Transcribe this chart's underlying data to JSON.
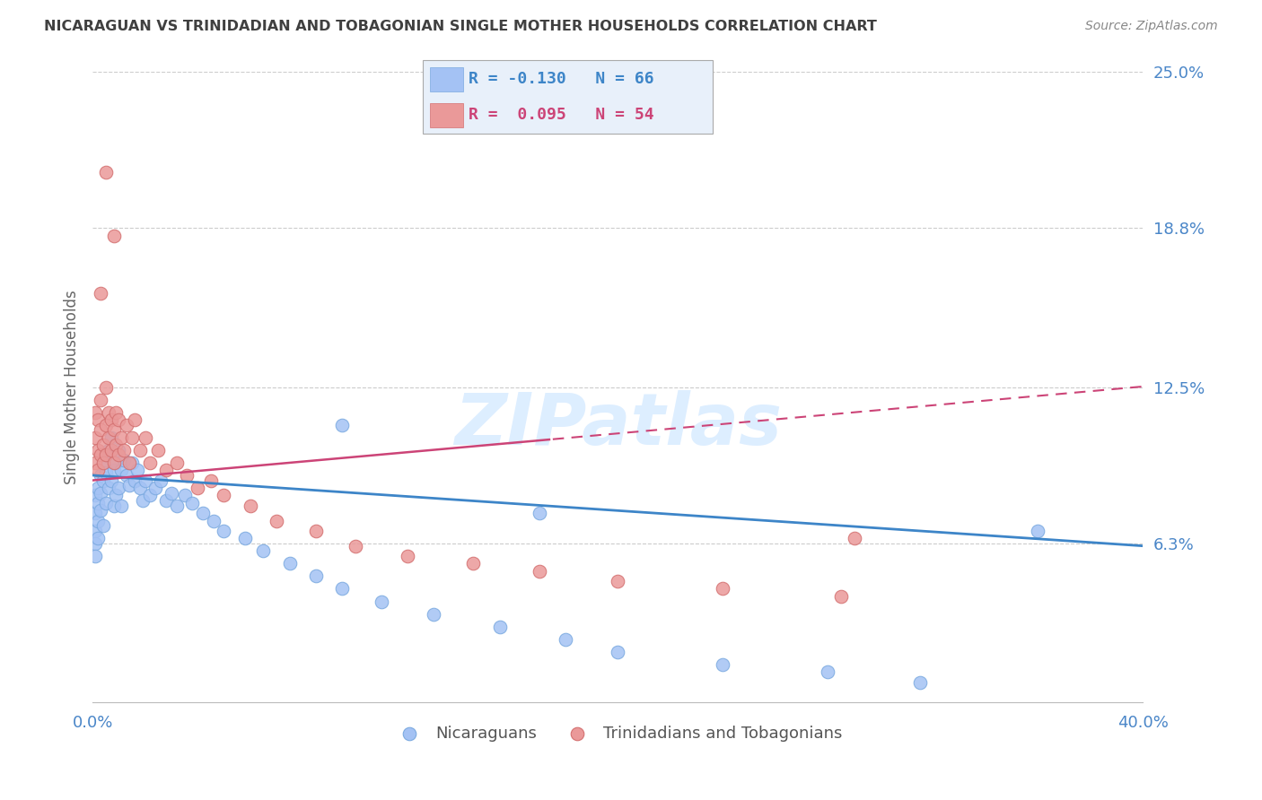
{
  "title": "NICARAGUAN VS TRINIDADIAN AND TOBAGONIAN SINGLE MOTHER HOUSEHOLDS CORRELATION CHART",
  "source": "Source: ZipAtlas.com",
  "ylabel": "Single Mother Households",
  "xlim": [
    0.0,
    0.4
  ],
  "ylim": [
    0.0,
    0.25
  ],
  "yticks": [
    0.063,
    0.125,
    0.188,
    0.25
  ],
  "ytick_labels": [
    "6.3%",
    "12.5%",
    "18.8%",
    "25.0%"
  ],
  "xticks": [
    0.0,
    0.4
  ],
  "xtick_labels": [
    "0.0%",
    "40.0%"
  ],
  "nicaraguan_R": -0.13,
  "nicaraguan_N": 66,
  "trinidadian_R": 0.095,
  "trinidadian_N": 54,
  "blue_color": "#a4c2f4",
  "pink_color": "#ea9999",
  "blue_line_color": "#3d85c8",
  "pink_line_color": "#cc4477",
  "grid_color": "#cccccc",
  "watermark_color": "#ddeeff",
  "title_color": "#404040",
  "axis_label_color": "#4a86c8",
  "legend_bg": "#e8f0fa",
  "blue_line_intercept": 0.09,
  "blue_line_slope": -0.07,
  "pink_line_intercept": 0.088,
  "pink_line_slope": 0.093,
  "nic_x": [
    0.001,
    0.001,
    0.001,
    0.001,
    0.001,
    0.002,
    0.002,
    0.002,
    0.002,
    0.003,
    0.003,
    0.003,
    0.004,
    0.004,
    0.004,
    0.005,
    0.005,
    0.005,
    0.006,
    0.006,
    0.007,
    0.007,
    0.008,
    0.008,
    0.009,
    0.009,
    0.01,
    0.01,
    0.011,
    0.011,
    0.012,
    0.013,
    0.014,
    0.015,
    0.016,
    0.017,
    0.018,
    0.019,
    0.02,
    0.022,
    0.024,
    0.026,
    0.028,
    0.03,
    0.032,
    0.035,
    0.038,
    0.042,
    0.046,
    0.05,
    0.058,
    0.065,
    0.075,
    0.085,
    0.095,
    0.11,
    0.13,
    0.155,
    0.18,
    0.2,
    0.24,
    0.28,
    0.315,
    0.36,
    0.095,
    0.17
  ],
  "nic_y": [
    0.075,
    0.068,
    0.082,
    0.063,
    0.058,
    0.085,
    0.079,
    0.072,
    0.065,
    0.09,
    0.083,
    0.076,
    0.095,
    0.088,
    0.07,
    0.098,
    0.091,
    0.079,
    0.1,
    0.085,
    0.105,
    0.088,
    0.092,
    0.078,
    0.095,
    0.082,
    0.1,
    0.085,
    0.092,
    0.078,
    0.096,
    0.09,
    0.086,
    0.095,
    0.088,
    0.092,
    0.085,
    0.08,
    0.088,
    0.082,
    0.085,
    0.088,
    0.08,
    0.083,
    0.078,
    0.082,
    0.079,
    0.075,
    0.072,
    0.068,
    0.065,
    0.06,
    0.055,
    0.05,
    0.045,
    0.04,
    0.035,
    0.03,
    0.025,
    0.02,
    0.015,
    0.012,
    0.008,
    0.068,
    0.11,
    0.075
  ],
  "tri_x": [
    0.001,
    0.001,
    0.001,
    0.002,
    0.002,
    0.002,
    0.003,
    0.003,
    0.003,
    0.004,
    0.004,
    0.005,
    0.005,
    0.005,
    0.006,
    0.006,
    0.007,
    0.007,
    0.008,
    0.008,
    0.009,
    0.009,
    0.01,
    0.01,
    0.011,
    0.012,
    0.013,
    0.014,
    0.015,
    0.016,
    0.018,
    0.02,
    0.022,
    0.025,
    0.028,
    0.032,
    0.036,
    0.04,
    0.045,
    0.05,
    0.06,
    0.07,
    0.085,
    0.1,
    0.12,
    0.145,
    0.17,
    0.2,
    0.24,
    0.285,
    0.005,
    0.008,
    0.003,
    0.29
  ],
  "tri_y": [
    0.095,
    0.105,
    0.115,
    0.1,
    0.112,
    0.092,
    0.108,
    0.098,
    0.12,
    0.102,
    0.095,
    0.11,
    0.098,
    0.125,
    0.105,
    0.115,
    0.1,
    0.112,
    0.095,
    0.108,
    0.102,
    0.115,
    0.098,
    0.112,
    0.105,
    0.1,
    0.11,
    0.095,
    0.105,
    0.112,
    0.1,
    0.105,
    0.095,
    0.1,
    0.092,
    0.095,
    0.09,
    0.085,
    0.088,
    0.082,
    0.078,
    0.072,
    0.068,
    0.062,
    0.058,
    0.055,
    0.052,
    0.048,
    0.045,
    0.042,
    0.21,
    0.185,
    0.162,
    0.065
  ]
}
